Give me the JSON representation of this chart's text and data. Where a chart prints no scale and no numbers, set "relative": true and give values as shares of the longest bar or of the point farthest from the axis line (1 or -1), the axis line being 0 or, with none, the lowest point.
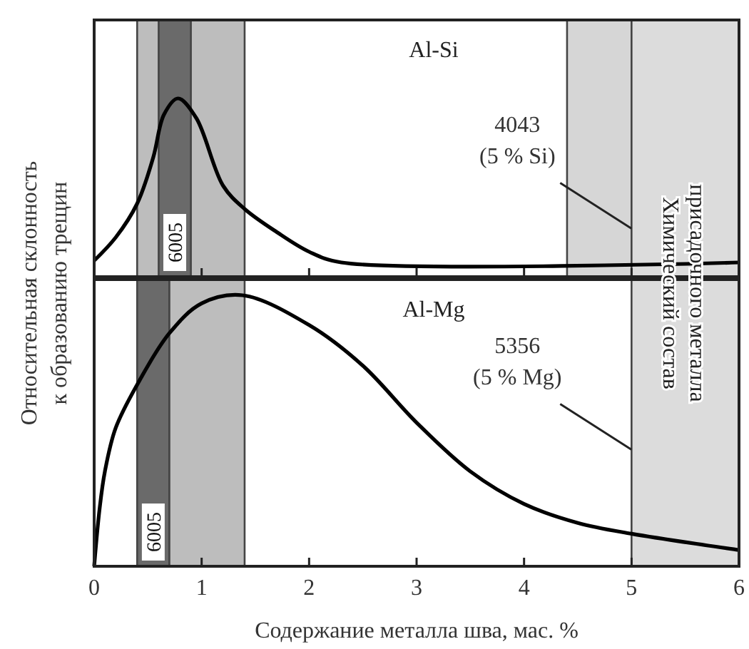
{
  "chart_data": [
    {
      "type": "line",
      "title": "Al-Si",
      "ylabel": "Относительная склонность\nк образованию трещин",
      "relative": true,
      "xlim": [
        0,
        6
      ],
      "xticks": [
        {
          "value": 1,
          "label": null
        },
        {
          "value": 2,
          "label": null
        },
        {
          "value": 3,
          "label": null
        },
        {
          "value": 4,
          "label": null
        },
        {
          "value": 5,
          "label": null
        }
      ],
      "tick_labels": false,
      "bands": [
        {
          "axis": "x",
          "from": 0.4,
          "to": 1.4,
          "color": "#bdbdbd"
        },
        {
          "axis": "x",
          "from": 0.6,
          "to": 0.9,
          "color": "#6a6a6a",
          "label": "6005"
        },
        {
          "axis": "x",
          "from": 4.4,
          "to": 5,
          "color": "#d6d6d6"
        },
        {
          "axis": "x",
          "from": 5,
          "to": 6,
          "color": "#dcdcdc",
          "label": "Химический состав\nприсадочного металла"
        }
      ],
      "annotations": [
        {
          "text": "4043\n(5 % Si)",
          "x": 5,
          "y": 0.27
        }
      ],
      "series": [
        {
          "color": "#000000",
          "x": [
            0,
            0.2,
            0.4,
            0.55,
            0.65,
            0.78,
            0.95,
            1.2,
            1.4,
            1.7,
            2.0,
            2.3,
            6
          ],
          "values": [
            0.09,
            0.22,
            0.41,
            0.67,
            0.91,
            1,
            0.89,
            0.51,
            0.38,
            0.25,
            0.14,
            0.08,
            0.08
          ]
        }
      ]
    },
    {
      "type": "line",
      "title": "Al-Mg",
      "xlabel": "Содержание металла шва, мас. %",
      "relative": true,
      "xlim": [
        0,
        6
      ],
      "xticks": [
        0,
        1,
        2,
        3,
        4,
        5,
        6
      ],
      "tick_labels": "x",
      "bands": [
        {
          "axis": "x",
          "from": 0.4,
          "to": 0.7,
          "color": "#6a6a6a",
          "label": "6005"
        },
        {
          "axis": "x",
          "from": 0.7,
          "to": 1.4,
          "color": "#bdbdbd"
        },
        {
          "axis": "x",
          "from": 5,
          "to": 6,
          "color": "#dcdcdc"
        }
      ],
      "annotations": [
        {
          "text": "5356\n(5 % Mg)",
          "x": 5,
          "y": 0.43
        }
      ],
      "series": [
        {
          "color": "#000000",
          "x": [
            0,
            0.05,
            0.1,
            0.2,
            0.4,
            0.7,
            1.0,
            1.38,
            2.0,
            2.5,
            3.0,
            3.5,
            4.0,
            4.5,
            5.0,
            6.0
          ],
          "values": [
            0,
            0.21,
            0.35,
            0.51,
            0.67,
            0.86,
            0.97,
            1,
            0.89,
            0.74,
            0.53,
            0.35,
            0.23,
            0.16,
            0.12,
            0.06
          ]
        }
      ]
    }
  ]
}
